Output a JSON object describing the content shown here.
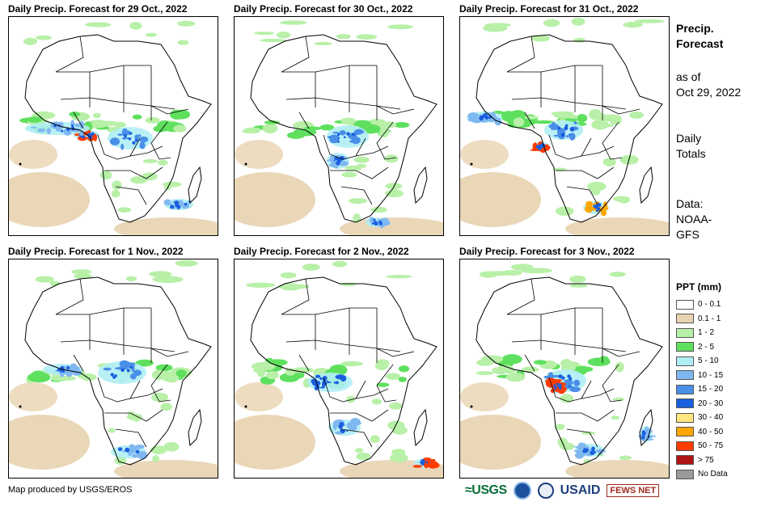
{
  "panels": [
    {
      "title": "Daily Precip. Forecast for 29 Oct., 2022"
    },
    {
      "title": "Daily Precip. Forecast for 30 Oct., 2022"
    },
    {
      "title": "Daily Precip. Forecast for 31 Oct., 2022"
    },
    {
      "title": "Daily Precip. Forecast for 1 Nov., 2022"
    },
    {
      "title": "Daily Precip. Forecast for 2 Nov., 2022"
    },
    {
      "title": "Daily Precip. Forecast for 3 Nov., 2022"
    }
  ],
  "side_info": {
    "heading_line1": "Precip.",
    "heading_line2": "Forecast",
    "asof_line1": "as of",
    "asof_line2": "Oct 29, 2022",
    "totals_line1": "Daily",
    "totals_line2": "Totals",
    "data_line1": "Data:",
    "data_line2": "NOAA-",
    "data_line3": "GFS"
  },
  "legend": {
    "title": "PPT (mm)",
    "items": [
      {
        "label": "0 - 0.1",
        "color": "#ffffff"
      },
      {
        "label": "0.1 - 1",
        "color": "#e8d3b0"
      },
      {
        "label": "1 - 2",
        "color": "#b8f0a8"
      },
      {
        "label": "2 - 5",
        "color": "#5ee05e"
      },
      {
        "label": "5 - 10",
        "color": "#b0eef5"
      },
      {
        "label": "10 - 15",
        "color": "#7fb8f0"
      },
      {
        "label": "15 - 20",
        "color": "#4a8ee8"
      },
      {
        "label": "20 - 30",
        "color": "#1a5fe0"
      },
      {
        "label": "30 - 40",
        "color": "#ffe680"
      },
      {
        "label": "40 - 50",
        "color": "#ffa500"
      },
      {
        "label": "50 - 75",
        "color": "#ff3c00"
      },
      {
        "label": "> 75",
        "color": "#b01515"
      },
      {
        "label": "No Data",
        "color": "#9a9a9a"
      }
    ]
  },
  "footer": {
    "credit": "Map produced by USGS/EROS"
  },
  "logos": {
    "usgs": "≈USGS",
    "usaid": "USAID",
    "fews": "FEWS NET"
  }
}
